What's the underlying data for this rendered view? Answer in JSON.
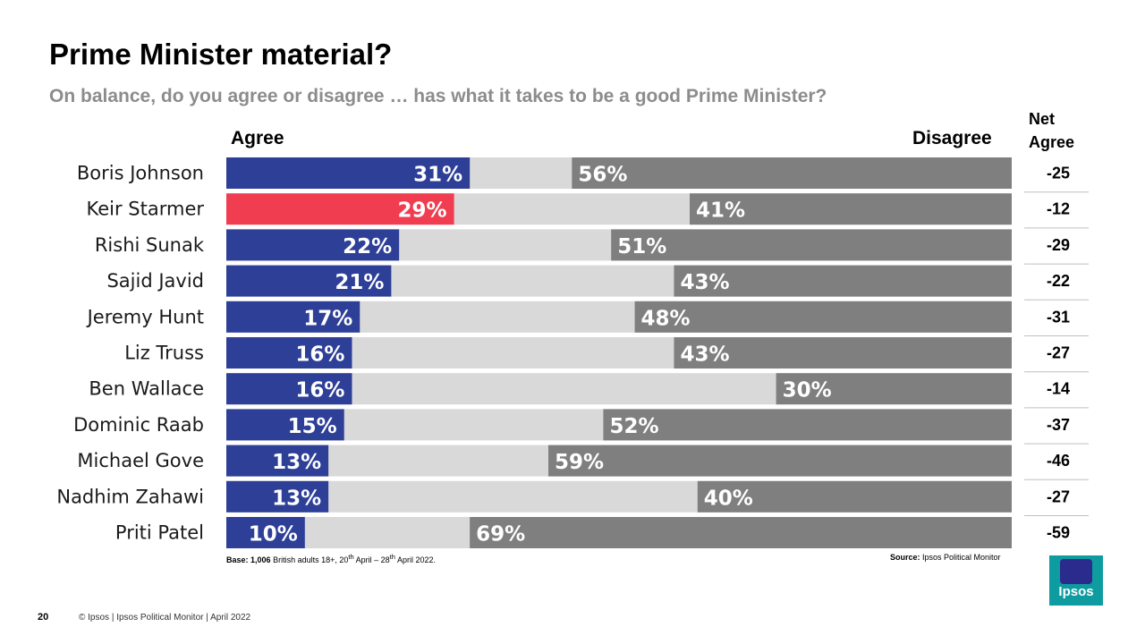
{
  "title": "Prime Minister material?",
  "subtitle": "On balance, do you agree or disagree … has what it takes to be a good Prime Minister?",
  "net_header": "Net Agree",
  "agree_label": "Agree",
  "disagree_label": "Disagree",
  "base_bold": "Base:",
  "base_num": "1,006",
  "base_text": " British adults 18+, 20",
  "base_sup1": "th",
  "base_mid": " April – 28",
  "base_sup2": "th",
  "base_end": " April 2022.",
  "source_bold": "Source:",
  "source_text": " Ipsos  Political Monitor",
  "page_number": "20",
  "footer": "© Ipsos | Ipsos  Political Monitor | April 2022",
  "logo_text": "Ipsos",
  "colors": {
    "agree": "#2e3f97",
    "highlight": "#f03e50",
    "neither": "#d9d9d9",
    "disagree": "#7f7f7f"
  },
  "chart_data": {
    "type": "bar",
    "orientation": "horizontal-stacked",
    "xlim": [
      0,
      100
    ],
    "categories": [
      "Boris Johnson",
      "Keir Starmer",
      "Rishi Sunak",
      "Sajid Javid",
      "Jeremy Hunt",
      "Liz Truss",
      "Ben Wallace",
      "Dominic Raab",
      "Michael Gove",
      "Nadhim Zahawi",
      "Priti Patel"
    ],
    "series": [
      {
        "name": "Agree",
        "values": [
          31,
          29,
          22,
          21,
          17,
          16,
          16,
          15,
          13,
          13,
          10
        ]
      },
      {
        "name": "Disagree",
        "values": [
          56,
          41,
          51,
          43,
          48,
          43,
          30,
          52,
          59,
          40,
          69
        ]
      }
    ],
    "labels_agree": [
      "31%",
      "29%",
      "22%",
      "21%",
      "17%",
      "16%",
      "16%",
      "15%",
      "13%",
      "13%",
      "10%"
    ],
    "labels_disagree": [
      "56%",
      "41%",
      "51%",
      "43%",
      "48%",
      "43%",
      "30%",
      "52%",
      "59%",
      "40%",
      "69%"
    ],
    "net_agree": [
      "-25",
      "-12",
      "-29",
      "-22",
      "-31",
      "-27",
      "-14",
      "-37",
      "-46",
      "-27",
      "-59"
    ],
    "highlight_index": 1
  }
}
